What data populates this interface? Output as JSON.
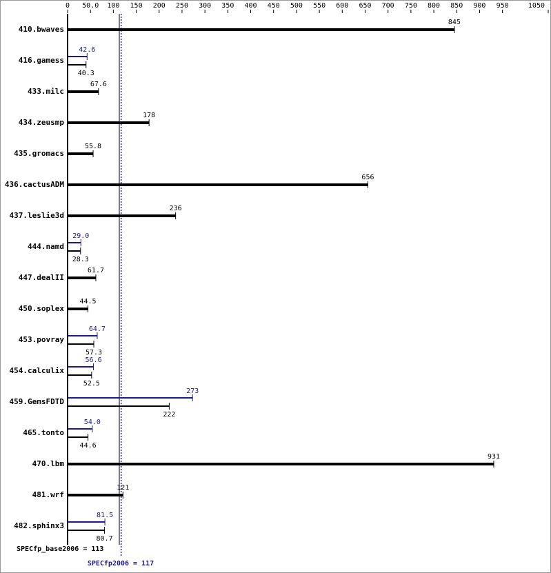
{
  "chart_data": {
    "type": "bar",
    "categories": [
      "410.bwaves",
      "416.gamess",
      "433.milc",
      "434.zeusmp",
      "435.gromacs",
      "436.cactusADM",
      "437.leslie3d",
      "444.namd",
      "447.dealII",
      "450.soplex",
      "453.povray",
      "454.calculix",
      "459.GemsFDTD",
      "465.tonto",
      "470.lbm",
      "481.wrf",
      "482.sphinx3"
    ],
    "series": [
      {
        "color": "#000000",
        "values": [
          845,
          40.3,
          67.6,
          178,
          55.8,
          656,
          236,
          28.3,
          61.7,
          44.5,
          57.3,
          52.5,
          222,
          44.6,
          931,
          121,
          80.7
        ],
        "value_labels": [
          "845",
          "40.3",
          "67.6",
          "178",
          "55.8",
          "656",
          "236",
          "28.3",
          "61.7",
          "44.5",
          "57.3",
          "52.5",
          "222",
          "44.6",
          "931",
          "121",
          "80.7"
        ]
      },
      {
        "color": "#1a1a8c",
        "values": [
          null,
          42.6,
          null,
          null,
          null,
          null,
          null,
          29,
          null,
          null,
          64.7,
          56.6,
          273,
          54,
          null,
          null,
          81.5
        ],
        "value_labels": [
          null,
          "42.6",
          null,
          null,
          null,
          null,
          null,
          "29.0",
          null,
          null,
          "64.7",
          "56.6",
          "273",
          "54.0",
          null,
          null,
          "81.5"
        ]
      }
    ],
    "xlim": [
      0,
      1050
    ],
    "xticks": [
      0,
      {
        "value": 50,
        "label": "50.0"
      },
      100,
      150,
      200,
      250,
      300,
      350,
      400,
      450,
      500,
      550,
      600,
      650,
      700,
      750,
      800,
      850,
      900,
      950,
      1050
    ],
    "reference_lines": [
      {
        "label": "SPECfp_base2006 = 113",
        "value": 113,
        "color": "#000000"
      },
      {
        "label": "SPECfp2006 = 117",
        "value": 117,
        "color": "#1a1a8c"
      }
    ]
  }
}
